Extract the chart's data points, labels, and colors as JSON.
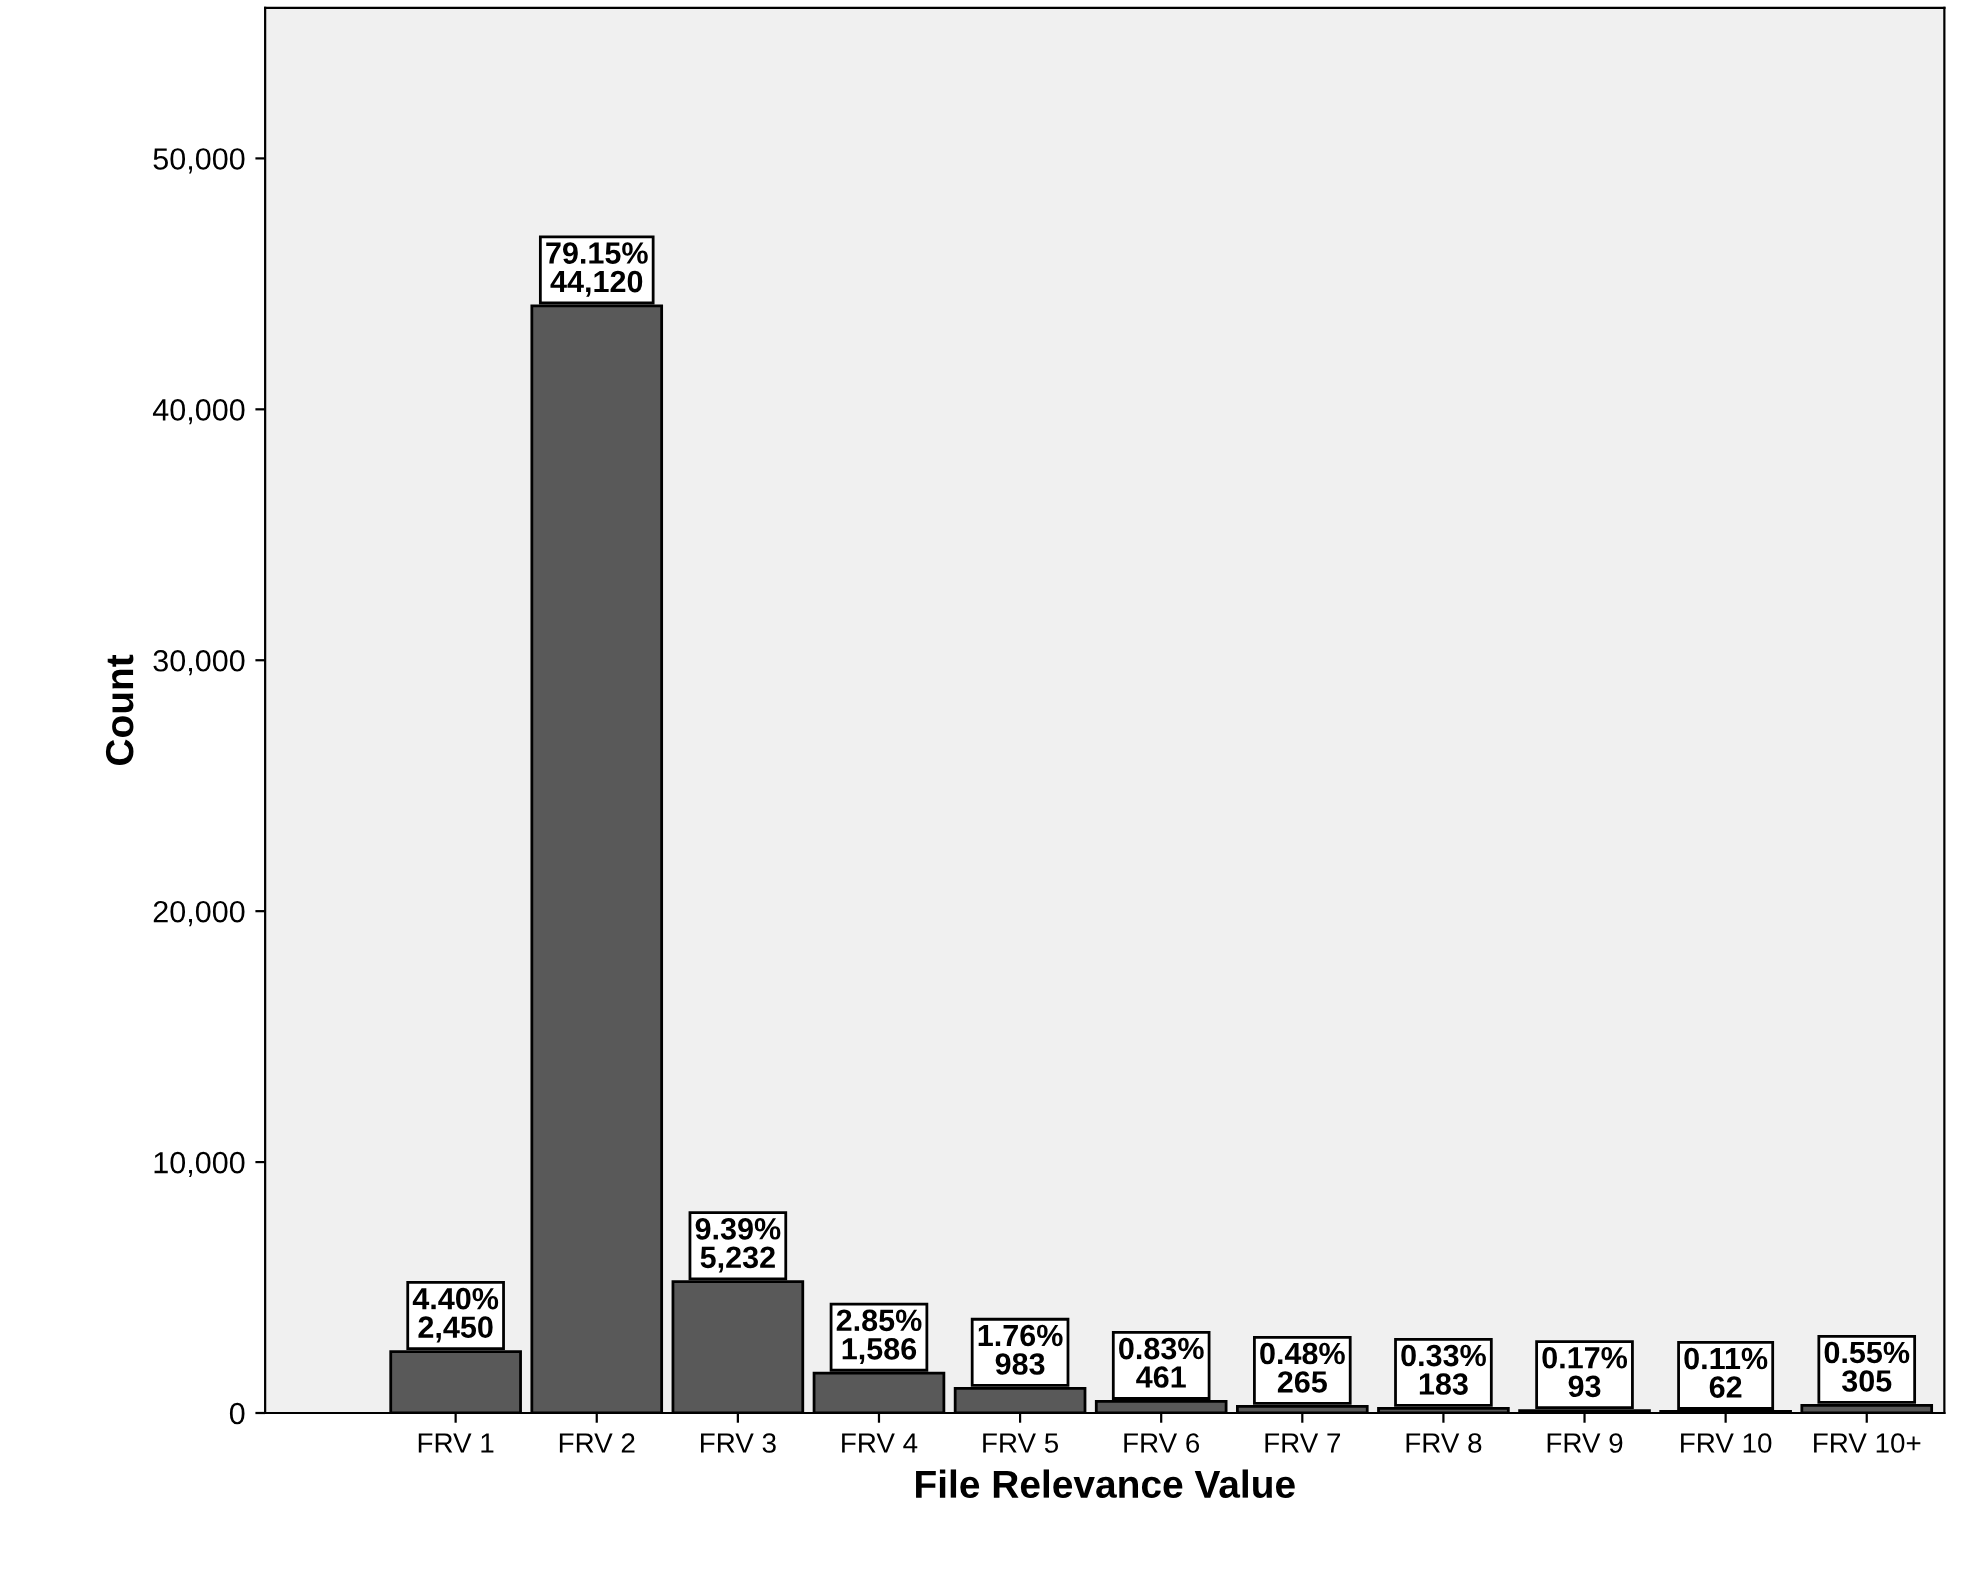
{
  "chart_data": {
    "type": "bar",
    "xlabel": "File Relevance Value",
    "ylabel": "Count",
    "categories": [
      "FRV 1",
      "FRV 2",
      "FRV 3",
      "FRV 4",
      "FRV 5",
      "FRV 6",
      "FRV 7",
      "FRV 8",
      "FRV 9",
      "FRV 10",
      "FRV 10+"
    ],
    "values": [
      2450,
      44120,
      5232,
      1586,
      983,
      461,
      265,
      183,
      93,
      62,
      305
    ],
    "value_labels": [
      "4.40%\n2,450",
      "79.15%\n44,120",
      "9.39%\n5,232",
      "2.85%\n1,586",
      "1.76%\n983",
      "0.83%\n461",
      "0.48%\n265",
      "0.33%\n183",
      "0.17%\n93",
      "0.11%\n62",
      "0.55%\n305"
    ],
    "color": "#595959",
    "ylim": [
      0,
      56000
    ],
    "yticks": [
      {
        "value": 0,
        "label": "0"
      },
      {
        "value": 10000,
        "label": "10,000"
      },
      {
        "value": 20000,
        "label": "20,000"
      },
      {
        "value": 30000,
        "label": "30,000"
      },
      {
        "value": 40000,
        "label": "40,000"
      },
      {
        "value": 50000,
        "label": "50,000"
      }
    ],
    "grid": false
  }
}
